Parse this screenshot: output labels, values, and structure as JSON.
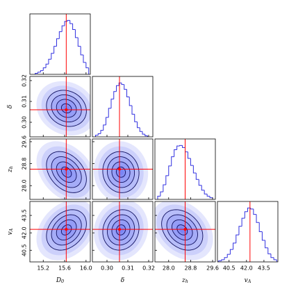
{
  "chart_data": {
    "type": "corner",
    "hist_color": "#3030e0",
    "density_color": "#2b3cf0",
    "contour_color": "#101060",
    "truth_color": "#ff0000",
    "hist_ylim": [
      0,
      1.12
    ],
    "parameters": [
      {
        "label": "D",
        "label_sub": "0",
        "truth": 15.63,
        "lim": [
          14.95,
          16.08
        ],
        "ticks": [
          15.2,
          15.6,
          {
            "value": 16,
            "label": "16.0"
          }
        ],
        "bins": [
          15.05,
          15.1,
          15.15,
          15.2,
          15.25,
          15.3,
          15.35,
          15.4,
          15.45,
          15.5,
          15.55,
          15.6,
          15.65,
          15.7,
          15.75,
          15.8,
          15.85,
          15.9,
          15.95,
          16.0,
          16.05
        ],
        "counts": [
          0.02,
          0.04,
          0.07,
          0.12,
          0.19,
          0.28,
          0.39,
          0.52,
          0.66,
          0.79,
          0.9,
          0.98,
          1.0,
          0.94,
          0.83,
          0.68,
          0.52,
          0.36,
          0.22,
          0.12
        ]
      },
      {
        "label": "δ",
        "truth": 0.306,
        "lim": [
          0.293,
          0.322
        ],
        "ticks": [
          {
            "value": 0.3,
            "label": "0.30"
          },
          0.31,
          0.32
        ],
        "bins": [
          0.2945,
          0.29575,
          0.297,
          0.29825,
          0.2995,
          0.30075,
          0.302,
          0.30325,
          0.3045,
          0.30575,
          0.307,
          0.30825,
          0.3095,
          0.31075,
          0.312,
          0.31325,
          0.3145,
          0.31575,
          0.317,
          0.31825,
          0.3195
        ],
        "counts": [
          0.03,
          0.06,
          0.12,
          0.22,
          0.36,
          0.53,
          0.7,
          0.84,
          0.95,
          1.0,
          0.97,
          0.88,
          0.74,
          0.58,
          0.42,
          0.28,
          0.17,
          0.1,
          0.05,
          0.02
        ]
      },
      {
        "label": "z",
        "label_sub": "h",
        "truth": 28.6,
        "lim": [
          27.5,
          29.7
        ],
        "ticks": [
          {
            "value": 28,
            "label": "28.0"
          },
          28.8,
          29.6
        ],
        "bins": [
          27.6,
          27.7,
          27.8,
          27.9,
          28.0,
          28.1,
          28.2,
          28.3,
          28.4,
          28.5,
          28.6,
          28.7,
          28.8,
          28.9,
          29.0,
          29.1,
          29.2,
          29.3,
          29.4,
          29.5,
          29.6
        ],
        "counts": [
          0.06,
          0.14,
          0.27,
          0.44,
          0.62,
          0.79,
          0.92,
          0.99,
          1.0,
          0.96,
          0.88,
          0.76,
          0.63,
          0.49,
          0.37,
          0.26,
          0.17,
          0.1,
          0.06,
          0.03
        ]
      },
      {
        "label": "v",
        "label_sub": "A",
        "truth": 42.3,
        "lim": [
          39.5,
          44.7
        ],
        "ticks": [
          40.5,
          {
            "value": 42,
            "label": "42.0"
          },
          43.5
        ],
        "bins": [
          39.6,
          39.85,
          40.1,
          40.35,
          40.6,
          40.85,
          41.1,
          41.35,
          41.6,
          41.85,
          42.1,
          42.35,
          42.6,
          42.85,
          43.1,
          43.35,
          43.6,
          43.85,
          44.1,
          44.35,
          44.6
        ],
        "counts": [
          0.02,
          0.04,
          0.08,
          0.14,
          0.23,
          0.35,
          0.5,
          0.66,
          0.81,
          0.93,
          1.0,
          0.98,
          0.88,
          0.73,
          0.56,
          0.4,
          0.26,
          0.15,
          0.08,
          0.04
        ]
      }
    ],
    "pairs": [
      {
        "x": 0,
        "y": 1,
        "correlation": -0.15
      },
      {
        "x": 0,
        "y": 2,
        "correlation": -0.35
      },
      {
        "x": 1,
        "y": 2,
        "correlation": -0.05
      },
      {
        "x": 0,
        "y": 3,
        "correlation": 0.3
      },
      {
        "x": 1,
        "y": 3,
        "correlation": 0.1
      },
      {
        "x": 2,
        "y": 3,
        "correlation": -0.3
      }
    ]
  }
}
